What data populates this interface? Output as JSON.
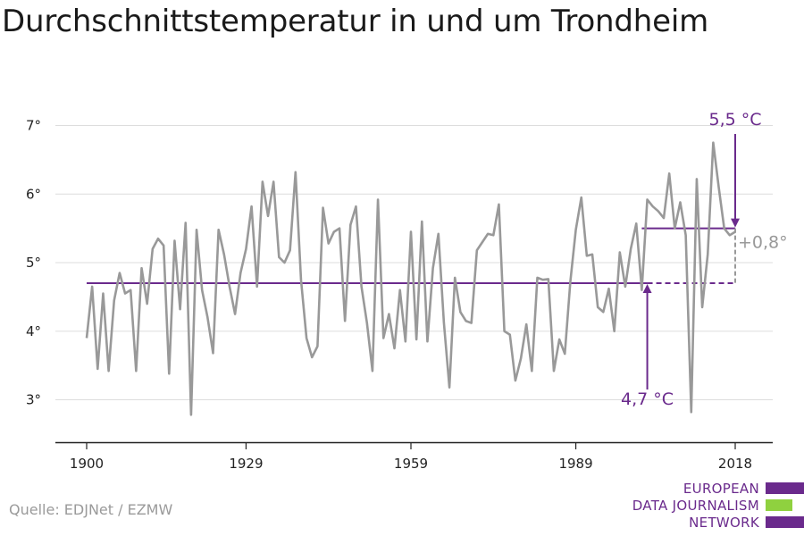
{
  "title": "Durchschnittstemperatur in und um Trondheim",
  "source": "Quelle: EDJNet / EZMW",
  "logo": {
    "lines": [
      "EUROPEAN",
      "DATA JOURNALISM",
      "NETWORK"
    ]
  },
  "colors": {
    "series": "#999999",
    "accent": "#6a2a8c",
    "grid": "#dddddd",
    "logo_green": "#8fd13f"
  },
  "chart_data": {
    "type": "line",
    "title": "Durchschnittstemperatur in und um Trondheim",
    "xlabel": "",
    "ylabel": "",
    "xlim": [
      1900,
      2019
    ],
    "ylim": [
      2.4,
      7.25
    ],
    "x_ticks": [
      1900,
      1929,
      1959,
      1989,
      2018
    ],
    "y_ticks": [
      {
        "value": 3,
        "label": "3°"
      },
      {
        "value": 4,
        "label": "4°"
      },
      {
        "value": 5,
        "label": "5°"
      },
      {
        "value": 6,
        "label": "6°"
      },
      {
        "value": 7,
        "label": "7°"
      }
    ],
    "grid": true,
    "series": [
      {
        "x_start": 1900,
        "values": [
          3.9,
          4.65,
          3.45,
          4.55,
          3.42,
          4.45,
          4.85,
          4.55,
          4.6,
          3.42,
          4.92,
          4.4,
          5.2,
          5.35,
          5.25,
          3.38,
          5.32,
          4.32,
          5.58,
          2.78,
          5.48,
          4.6,
          4.2,
          3.68,
          5.48,
          5.12,
          4.65,
          4.25,
          4.85,
          5.2,
          5.82,
          4.65,
          6.18,
          5.68,
          6.18,
          5.08,
          5.0,
          5.18,
          6.32,
          4.75,
          3.9,
          3.62,
          3.78,
          5.8,
          5.28,
          5.45,
          5.5,
          4.15,
          5.55,
          5.82,
          4.65,
          4.12,
          3.42,
          5.92,
          3.9,
          4.25,
          3.75,
          4.6,
          3.85,
          5.45,
          3.88,
          5.6,
          3.85,
          4.92,
          5.42,
          4.12,
          3.18,
          4.78,
          4.28,
          4.15,
          4.12,
          5.18,
          5.3,
          5.42,
          5.4,
          5.85,
          4.0,
          3.95,
          3.28,
          3.6,
          4.1,
          3.42,
          4.78,
          4.75,
          4.76,
          3.42,
          3.88,
          3.67,
          4.72,
          5.48,
          5.95,
          5.1,
          5.12,
          4.35,
          4.28,
          4.62,
          4.0,
          5.15,
          4.65,
          5.2,
          5.57,
          4.6,
          5.92,
          5.82,
          5.75,
          5.65,
          6.3,
          5.5,
          5.88,
          5.4,
          2.82,
          6.22,
          4.35,
          5.12,
          6.75,
          6.1,
          5.5,
          5.4,
          5.45
        ]
      }
    ],
    "references": [
      {
        "value": 4.7,
        "x_range": [
          1900,
          2018
        ]
      },
      {
        "value": 5.5,
        "x_range": [
          2001,
          2018
        ]
      }
    ],
    "annotations": [
      {
        "text": "5,5 °C",
        "value": 5.5,
        "x": 2018
      },
      {
        "text": "4,7 °C",
        "value": 4.7,
        "x": 2002
      },
      {
        "text": "+0,8°",
        "from": 4.7,
        "to": 5.5,
        "x": 2018
      }
    ]
  }
}
